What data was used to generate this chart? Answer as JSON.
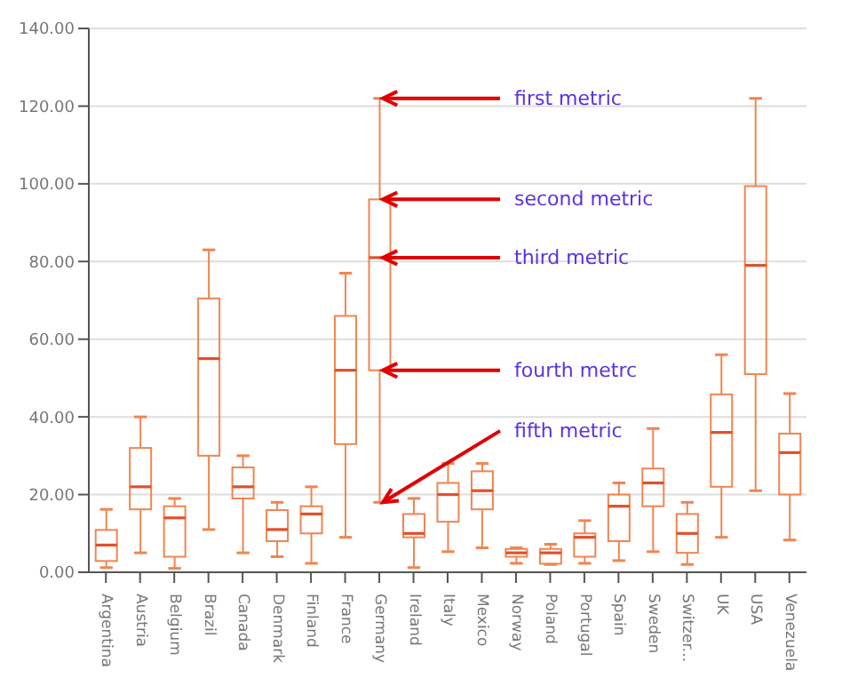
{
  "chart_data": {
    "type": "box",
    "color": "#f08550",
    "categories": [
      "Argentina",
      "Austria",
      "Belgium",
      "Brazil",
      "Canada",
      "Denmark",
      "Finland",
      "France",
      "Germany",
      "Ireland",
      "Italy",
      "Mexico",
      "Norway",
      "Poland",
      "Portugal",
      "Spain",
      "Sweden",
      "Switzer...",
      "UK",
      "USA",
      "Venezuela"
    ],
    "boxes": [
      {
        "low": 1.2,
        "q1": 2.9,
        "median": 7,
        "q3": 10.9,
        "high": 16.2
      },
      {
        "low": 5,
        "q1": 16.2,
        "median": 22,
        "q3": 32,
        "high": 40
      },
      {
        "low": 1,
        "q1": 4,
        "median": 14,
        "q3": 17,
        "high": 19
      },
      {
        "low": 11,
        "q1": 30,
        "median": 55,
        "q3": 70.5,
        "high": 83
      },
      {
        "low": 5,
        "q1": 19,
        "median": 22,
        "q3": 27,
        "high": 30
      },
      {
        "low": 4,
        "q1": 8,
        "median": 11,
        "q3": 16,
        "high": 18
      },
      {
        "low": 2.3,
        "q1": 10,
        "median": 15,
        "q3": 17,
        "high": 22
      },
      {
        "low": 9,
        "q1": 33,
        "median": 52,
        "q3": 66,
        "high": 77
      },
      {
        "low": 18,
        "q1": 52,
        "median": 81,
        "q3": 96,
        "high": 122
      },
      {
        "low": 1.2,
        "q1": 9,
        "median": 10,
        "q3": 15,
        "high": 19
      },
      {
        "low": 5.3,
        "q1": 13,
        "median": 20,
        "q3": 23,
        "high": 28
      },
      {
        "low": 6.3,
        "q1": 16.2,
        "median": 21,
        "q3": 26,
        "high": 28
      },
      {
        "low": 2.3,
        "q1": 4,
        "median": 5,
        "q3": 6,
        "high": 6.3
      },
      {
        "low": 2,
        "q1": 2.2,
        "median": 5,
        "q3": 6,
        "high": 7.2
      },
      {
        "low": 2.3,
        "q1": 4,
        "median": 9,
        "q3": 10,
        "high": 13.3
      },
      {
        "low": 3,
        "q1": 8,
        "median": 17,
        "q3": 20,
        "high": 23
      },
      {
        "low": 5.3,
        "q1": 17,
        "median": 23,
        "q3": 26.7,
        "high": 37
      },
      {
        "low": 2,
        "q1": 5,
        "median": 10,
        "q3": 15,
        "high": 18
      },
      {
        "low": 9,
        "q1": 22,
        "median": 36,
        "q3": 45.8,
        "high": 56
      },
      {
        "low": 21,
        "q1": 51,
        "median": 79,
        "q3": 99.4,
        "high": 122
      },
      {
        "low": 8.3,
        "q1": 20,
        "median": 30.8,
        "q3": 35.7,
        "high": 46
      }
    ],
    "ylim": [
      0,
      140
    ],
    "yticks": [
      {
        "value": 0,
        "label": "0.00"
      },
      {
        "value": 20,
        "label": "20.00"
      },
      {
        "value": 40,
        "label": "40.00"
      },
      {
        "value": 60,
        "label": "60.00"
      },
      {
        "value": 80,
        "label": "80.00"
      },
      {
        "value": 100,
        "label": "100.00"
      },
      {
        "value": 120,
        "label": "120.00"
      },
      {
        "value": 140,
        "label": "140.00"
      }
    ],
    "grid": "y",
    "annotations": [
      {
        "text": "first metric",
        "x": "Germany",
        "y": 122
      },
      {
        "text": "second metric",
        "x": "Germany",
        "y": 96
      },
      {
        "text": "third metric",
        "x": "Germany",
        "y": 81
      },
      {
        "text": "fourth metrc",
        "x": "Germany",
        "y": 52
      },
      {
        "text": "fifth metric",
        "x": "Germany",
        "y": 18
      }
    ]
  }
}
